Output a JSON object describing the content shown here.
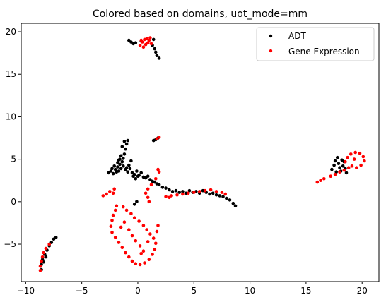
{
  "chart_data": {
    "type": "scatter",
    "title": "Colored based on domains, uot_mode=mm",
    "xlabel": "",
    "ylabel": "",
    "xlim": [
      -10.4,
      21.5
    ],
    "ylim": [
      -9.4,
      21.0
    ],
    "xticks": [
      -10,
      -5,
      0,
      5,
      10,
      15,
      20
    ],
    "yticks": [
      -5,
      0,
      5,
      10,
      15,
      20
    ],
    "tick_labels": {
      "x": [
        "−10",
        "−5",
        "0",
        "5",
        "10",
        "15",
        "20"
      ],
      "y": [
        "−5",
        "0",
        "5",
        "10",
        "15",
        "20"
      ]
    },
    "grid": false,
    "legend": "top-right",
    "series": [
      {
        "name": "ADT",
        "color": "#000000",
        "points": [
          [
            -2.6,
            3.4
          ],
          [
            -2.4,
            3.6
          ],
          [
            -2.2,
            3.3
          ],
          [
            -2.0,
            3.8
          ],
          [
            -1.9,
            3.5
          ],
          [
            -1.8,
            4.1
          ],
          [
            -1.7,
            3.6
          ],
          [
            -1.6,
            4.4
          ],
          [
            -1.5,
            3.9
          ],
          [
            -1.4,
            4.7
          ],
          [
            -1.3,
            5.1
          ],
          [
            -1.2,
            5.6
          ],
          [
            -1.1,
            6.2
          ],
          [
            -1.0,
            6.8
          ],
          [
            -1.2,
            7.1
          ],
          [
            -0.9,
            7.2
          ],
          [
            -1.4,
            6.5
          ],
          [
            -1.6,
            5.0
          ],
          [
            -1.8,
            4.6
          ],
          [
            -1.3,
            4.2
          ],
          [
            -1.1,
            3.8
          ],
          [
            -0.9,
            3.5
          ],
          [
            -0.7,
            3.9
          ],
          [
            -0.5,
            3.4
          ],
          [
            -0.3,
            3.2
          ],
          [
            -0.1,
            3.6
          ],
          [
            0.1,
            3.1
          ],
          [
            0.3,
            3.4
          ],
          [
            0.5,
            2.9
          ],
          [
            0.7,
            2.8
          ],
          [
            0.9,
            3.0
          ],
          [
            1.1,
            2.6
          ],
          [
            1.3,
            2.4
          ],
          [
            1.5,
            2.3
          ],
          [
            1.7,
            2.1
          ],
          [
            1.9,
            2.0
          ],
          [
            2.2,
            1.7
          ],
          [
            2.5,
            1.6
          ],
          [
            2.8,
            1.4
          ],
          [
            3.1,
            1.2
          ],
          [
            3.4,
            1.3
          ],
          [
            3.7,
            1.1
          ],
          [
            4.0,
            1.2
          ],
          [
            4.3,
            1.0
          ],
          [
            4.6,
            1.3
          ],
          [
            4.9,
            1.1
          ],
          [
            5.2,
            1.2
          ],
          [
            5.5,
            1.0
          ],
          [
            5.8,
            1.3
          ],
          [
            6.1,
            1.1
          ],
          [
            6.4,
            0.9
          ],
          [
            6.7,
            1.0
          ],
          [
            7.0,
            0.8
          ],
          [
            7.3,
            0.7
          ],
          [
            7.6,
            0.6
          ],
          [
            7.9,
            0.4
          ],
          [
            8.2,
            0.2
          ],
          [
            8.5,
            -0.2
          ],
          [
            8.7,
            -0.5
          ],
          [
            -0.8,
            4.3
          ],
          [
            -0.6,
            4.8
          ],
          [
            -0.4,
            3.0
          ],
          [
            -2.3,
            3.9
          ],
          [
            -2.1,
            4.2
          ],
          [
            -1.7,
            4.9
          ],
          [
            -1.5,
            5.4
          ],
          [
            -1.0,
            4.0
          ],
          [
            -0.2,
            2.7
          ],
          [
            0.0,
            3.0
          ],
          [
            -0.8,
            19.0
          ],
          [
            -0.6,
            18.8
          ],
          [
            -0.4,
            18.6
          ],
          [
            -0.2,
            18.7
          ],
          [
            0.3,
            18.9
          ],
          [
            1.3,
            18.4
          ],
          [
            1.5,
            18.0
          ],
          [
            1.6,
            17.6
          ],
          [
            1.7,
            17.2
          ],
          [
            1.9,
            16.9
          ],
          [
            1.4,
            19.1
          ],
          [
            1.8,
            7.5
          ],
          [
            1.6,
            7.3
          ],
          [
            1.4,
            7.2
          ],
          [
            -0.1,
            0.0
          ],
          [
            -0.3,
            -0.3
          ],
          [
            17.3,
            3.8
          ],
          [
            17.5,
            4.3
          ],
          [
            17.6,
            4.8
          ],
          [
            17.8,
            5.2
          ],
          [
            17.9,
            4.5
          ],
          [
            18.0,
            4.0
          ],
          [
            18.1,
            3.6
          ],
          [
            18.3,
            4.2
          ],
          [
            18.4,
            4.7
          ],
          [
            18.5,
            3.9
          ],
          [
            18.6,
            3.4
          ],
          [
            17.7,
            3.5
          ],
          [
            18.2,
            4.9
          ],
          [
            -8.6,
            -8.0
          ],
          [
            -8.6,
            -7.4
          ],
          [
            -8.5,
            -6.8
          ],
          [
            -8.3,
            -6.2
          ],
          [
            -8.1,
            -5.7
          ],
          [
            -7.9,
            -5.2
          ],
          [
            -7.7,
            -4.8
          ],
          [
            -7.5,
            -4.4
          ],
          [
            -7.3,
            -4.2
          ],
          [
            -8.4,
            -7.1
          ],
          [
            -8.2,
            -6.5
          ]
        ]
      },
      {
        "name": "Gene Expression",
        "color": "#ff0000",
        "points": [
          [
            0.2,
            18.4
          ],
          [
            0.4,
            18.8
          ],
          [
            0.6,
            19.1
          ],
          [
            0.8,
            19.2
          ],
          [
            1.0,
            19.0
          ],
          [
            1.2,
            18.6
          ],
          [
            0.5,
            18.2
          ],
          [
            0.9,
            18.7
          ],
          [
            0.3,
            19.0
          ],
          [
            1.1,
            19.3
          ],
          [
            0.7,
            18.5
          ],
          [
            1.9,
            7.6
          ],
          [
            1.7,
            7.4
          ],
          [
            1.8,
            3.8
          ],
          [
            1.9,
            3.5
          ],
          [
            1.6,
            2.7
          ],
          [
            1.2,
            2.0
          ],
          [
            0.9,
            1.5
          ],
          [
            0.7,
            1.0
          ],
          [
            0.9,
            0.5
          ],
          [
            1.0,
            0.0
          ],
          [
            2.5,
            0.6
          ],
          [
            3.0,
            0.7
          ],
          [
            3.5,
            0.8
          ],
          [
            4.0,
            0.9
          ],
          [
            4.5,
            1.0
          ],
          [
            5.0,
            1.1
          ],
          [
            5.5,
            1.2
          ],
          [
            6.0,
            1.3
          ],
          [
            6.5,
            1.4
          ],
          [
            7.0,
            1.2
          ],
          [
            7.5,
            1.1
          ],
          [
            7.8,
            0.9
          ],
          [
            2.8,
            0.5
          ],
          [
            -2.5,
            1.2
          ],
          [
            -2.8,
            0.9
          ],
          [
            -3.1,
            0.7
          ],
          [
            -2.2,
            1.0
          ],
          [
            -2.1,
            1.5
          ],
          [
            -1.9,
            -0.5
          ],
          [
            -2.0,
            -1.0
          ],
          [
            -2.2,
            -1.6
          ],
          [
            -2.3,
            -2.2
          ],
          [
            -2.4,
            -2.9
          ],
          [
            -2.3,
            -3.6
          ],
          [
            -2.0,
            -4.2
          ],
          [
            -1.7,
            -4.8
          ],
          [
            -1.4,
            -5.4
          ],
          [
            -1.1,
            -6.0
          ],
          [
            -0.8,
            -6.5
          ],
          [
            -0.5,
            -7.0
          ],
          [
            -0.2,
            -7.3
          ],
          [
            0.2,
            -7.4
          ],
          [
            0.6,
            -7.2
          ],
          [
            1.0,
            -6.8
          ],
          [
            1.3,
            -6.2
          ],
          [
            1.5,
            -5.6
          ],
          [
            1.6,
            -4.9
          ],
          [
            1.4,
            -4.3
          ],
          [
            1.1,
            -3.8
          ],
          [
            0.8,
            -3.3
          ],
          [
            0.5,
            -2.8
          ],
          [
            0.1,
            -2.3
          ],
          [
            -0.3,
            -1.9
          ],
          [
            -0.6,
            -1.4
          ],
          [
            -1.0,
            -1.0
          ],
          [
            -1.3,
            -0.6
          ],
          [
            1.7,
            -3.5
          ],
          [
            1.8,
            -2.8
          ],
          [
            -0.8,
            -3.3
          ],
          [
            -0.5,
            -4.0
          ],
          [
            -0.2,
            -4.6
          ],
          [
            0.2,
            -5.2
          ],
          [
            0.5,
            -5.8
          ],
          [
            -1.5,
            -3.0
          ],
          [
            -1.2,
            -2.4
          ],
          [
            0.9,
            -4.7
          ],
          [
            0.3,
            -6.1
          ],
          [
            16.0,
            2.3
          ],
          [
            16.3,
            2.5
          ],
          [
            16.6,
            2.7
          ],
          [
            17.2,
            3.0
          ],
          [
            17.6,
            3.2
          ],
          [
            18.0,
            3.5
          ],
          [
            18.4,
            3.7
          ],
          [
            18.8,
            4.0
          ],
          [
            18.5,
            4.7
          ],
          [
            18.7,
            5.2
          ],
          [
            19.0,
            5.6
          ],
          [
            19.4,
            5.8
          ],
          [
            19.8,
            5.7
          ],
          [
            20.1,
            5.3
          ],
          [
            20.2,
            4.8
          ],
          [
            19.9,
            4.3
          ],
          [
            19.5,
            4.0
          ],
          [
            19.1,
            4.2
          ],
          [
            19.3,
            5.0
          ],
          [
            -8.7,
            -8.1
          ],
          [
            -8.7,
            -7.6
          ],
          [
            -8.6,
            -7.0
          ],
          [
            -8.5,
            -6.5
          ],
          [
            -8.4,
            -6.0
          ],
          [
            -8.2,
            -5.5
          ],
          [
            -7.9,
            -5.0
          ]
        ]
      }
    ]
  }
}
